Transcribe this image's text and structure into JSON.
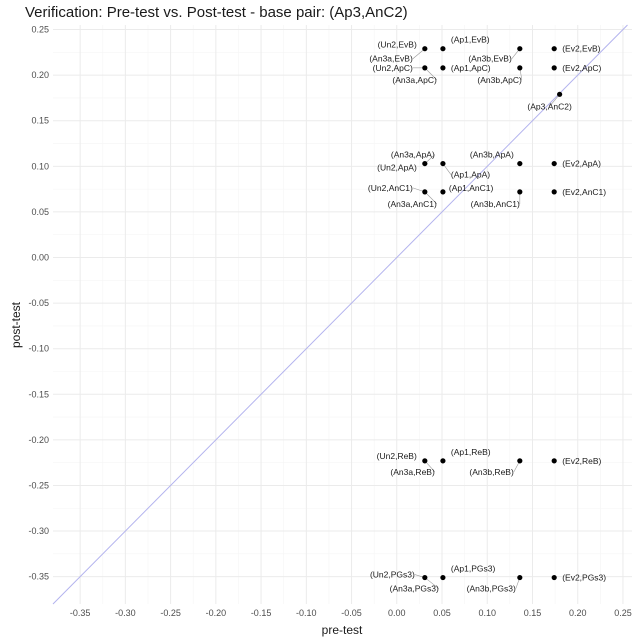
{
  "chart_data": {
    "type": "scatter",
    "title": "Verification: Pre-test vs. Post-test - base pair: (Ap3,AnC2)",
    "xlabel": "pre-test",
    "ylabel": "post-test",
    "xlim": [
      -0.38,
      0.26
    ],
    "ylim": [
      -0.38,
      0.255
    ],
    "x_ticks": [
      -0.35,
      -0.3,
      -0.25,
      -0.2,
      -0.15,
      -0.1,
      -0.05,
      0.0,
      0.05,
      0.1,
      0.15,
      0.2,
      0.25
    ],
    "x_tick_labels": [
      "-0.35",
      "-0.30",
      "-0.25",
      "-0.20",
      "-0.15",
      "-0.10",
      "-0.05",
      "0.00",
      "0.05",
      "0.10",
      "0.15",
      "0.20",
      "0.25"
    ],
    "y_ticks": [
      -0.35,
      -0.3,
      -0.25,
      -0.2,
      -0.15,
      -0.1,
      -0.05,
      0.0,
      0.05,
      0.1,
      0.15,
      0.2,
      0.25
    ],
    "y_tick_labels": [
      "-0.35",
      "-0.30",
      "-0.25",
      "-0.20",
      "-0.15",
      "-0.10",
      "-0.05",
      "0.00",
      "0.05",
      "0.10",
      "0.15",
      "0.20",
      "0.25"
    ],
    "grid": true,
    "reference_line": "y = x",
    "colors": {
      "points": "#000000",
      "reference_line": "#b3b3ee",
      "grid_major": "#ebebeb",
      "grid_minor": "#f5f5f5",
      "leader": "#999999"
    },
    "points": [
      {
        "label": "(Un2,EvB)",
        "x": 0.031,
        "y": 0.229,
        "label_anchor": "left",
        "dx": -8,
        "dy": -4
      },
      {
        "label": "(Ap1,EvB)",
        "x": 0.051,
        "y": 0.229,
        "label_anchor": "right",
        "dx": 8,
        "dy": -9
      },
      {
        "label": "(An3a,EvB)",
        "x": 0.031,
        "y": 0.229,
        "label_anchor": "left",
        "dx": -12,
        "dy": 10
      },
      {
        "label": "(An3b,EvB)",
        "x": 0.136,
        "y": 0.229,
        "label_anchor": "left",
        "dx": -8,
        "dy": 10
      },
      {
        "label": "(Ev2,EvB)",
        "x": 0.174,
        "y": 0.229,
        "label_anchor": "right",
        "dx": 8,
        "dy": 0
      },
      {
        "label": "(Un2,ApC)",
        "x": 0.031,
        "y": 0.208,
        "label_anchor": "left",
        "dx": -12,
        "dy": 0
      },
      {
        "label": "(Ap1,ApC)",
        "x": 0.051,
        "y": 0.208,
        "label_anchor": "right",
        "dx": 8,
        "dy": 0
      },
      {
        "label": "(An3a,ApC)",
        "x": 0.031,
        "y": 0.208,
        "label_anchor": "left",
        "dx": 12,
        "dy": 12
      },
      {
        "label": "(An3b,ApC)",
        "x": 0.136,
        "y": 0.208,
        "label_anchor": "left",
        "dx": 2,
        "dy": 12
      },
      {
        "label": "(Ev2,ApC)",
        "x": 0.174,
        "y": 0.208,
        "label_anchor": "right",
        "dx": 8,
        "dy": 0
      },
      {
        "label": "(Ap3,AnC2)",
        "x": 0.18,
        "y": 0.179,
        "label_anchor": "middle",
        "dx": -10,
        "dy": 12
      },
      {
        "label": "(An3a,ApA)",
        "x": 0.031,
        "y": 0.103,
        "label_anchor": "left",
        "dx": 10,
        "dy": -9
      },
      {
        "label": "(An3b,ApA)",
        "x": 0.136,
        "y": 0.103,
        "label_anchor": "left",
        "dx": -6,
        "dy": -9
      },
      {
        "label": "(Un2,ApA)",
        "x": 0.031,
        "y": 0.103,
        "label_anchor": "left",
        "dx": -8,
        "dy": 4
      },
      {
        "label": "(Ap1,ApA)",
        "x": 0.051,
        "y": 0.103,
        "label_anchor": "right",
        "dx": 8,
        "dy": 11
      },
      {
        "label": "(Ev2,ApA)",
        "x": 0.174,
        "y": 0.103,
        "label_anchor": "right",
        "dx": 8,
        "dy": 0
      },
      {
        "label": "(Un2,AnC1)",
        "x": 0.031,
        "y": 0.072,
        "label_anchor": "left",
        "dx": -12,
        "dy": -4
      },
      {
        "label": "(Ap1,AnC1)",
        "x": 0.051,
        "y": 0.072,
        "label_anchor": "right",
        "dx": 6,
        "dy": -4
      },
      {
        "label": "(An3a,AnC1)",
        "x": 0.031,
        "y": 0.072,
        "label_anchor": "left",
        "dx": 12,
        "dy": 12
      },
      {
        "label": "(An3b,AnC1)",
        "x": 0.136,
        "y": 0.072,
        "label_anchor": "left",
        "dx": 0,
        "dy": 12
      },
      {
        "label": "(Ev2,AnC1)",
        "x": 0.174,
        "y": 0.072,
        "label_anchor": "right",
        "dx": 8,
        "dy": 0
      },
      {
        "label": "(Un2,ReB)",
        "x": 0.031,
        "y": -0.223,
        "label_anchor": "left",
        "dx": -8,
        "dy": -5
      },
      {
        "label": "(Ap1,ReB)",
        "x": 0.051,
        "y": -0.223,
        "label_anchor": "right",
        "dx": 8,
        "dy": -9
      },
      {
        "label": "(An3a,ReB)",
        "x": 0.031,
        "y": -0.223,
        "label_anchor": "left",
        "dx": 10,
        "dy": 11
      },
      {
        "label": "(An3b,ReB)",
        "x": 0.136,
        "y": -0.223,
        "label_anchor": "left",
        "dx": -6,
        "dy": 11
      },
      {
        "label": "(Ev2,ReB)",
        "x": 0.174,
        "y": -0.223,
        "label_anchor": "right",
        "dx": 8,
        "dy": 0
      },
      {
        "label": "(Un2,PGs3)",
        "x": 0.031,
        "y": -0.351,
        "label_anchor": "left",
        "dx": -10,
        "dy": -3
      },
      {
        "label": "(Ap1,PGs3)",
        "x": 0.051,
        "y": -0.351,
        "label_anchor": "right",
        "dx": 8,
        "dy": -9
      },
      {
        "label": "(An3a,PGs3)",
        "x": 0.031,
        "y": -0.351,
        "label_anchor": "left",
        "dx": 14,
        "dy": 11
      },
      {
        "label": "(An3b,PGs3)",
        "x": 0.136,
        "y": -0.351,
        "label_anchor": "left",
        "dx": -4,
        "dy": 11
      },
      {
        "label": "(Ev2,PGs3)",
        "x": 0.174,
        "y": -0.351,
        "label_anchor": "right",
        "dx": 8,
        "dy": 0
      }
    ]
  }
}
